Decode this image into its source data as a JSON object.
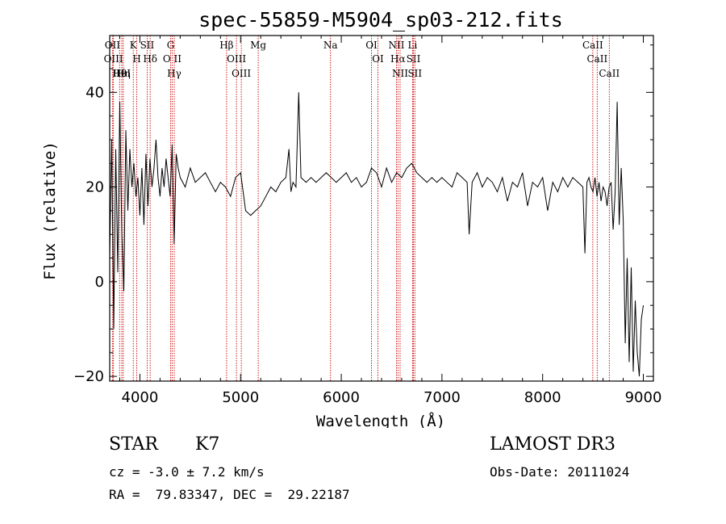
{
  "chart_data": {
    "type": "line",
    "title": "spec-55859-M5904_sp03-212.fits",
    "xlabel": "Wavelength (Å)",
    "ylabel": "Flux (relative)",
    "xlim": [
      3700,
      9100
    ],
    "ylim": [
      -21,
      52
    ],
    "xticks": [
      4000,
      5000,
      6000,
      7000,
      8000,
      9000
    ],
    "yticks": [
      -20,
      0,
      20,
      40
    ],
    "grid": false,
    "legend": "none",
    "series": [
      {
        "name": "spectrum",
        "color": "#000000",
        "x": [
          3700,
          3720,
          3740,
          3760,
          3780,
          3800,
          3820,
          3840,
          3860,
          3880,
          3900,
          3920,
          3940,
          3960,
          3980,
          4000,
          4020,
          4040,
          4060,
          4080,
          4100,
          4120,
          4140,
          4160,
          4180,
          4200,
          4220,
          4240,
          4260,
          4280,
          4300,
          4320,
          4340,
          4360,
          4380,
          4400,
          4450,
          4500,
          4550,
          4600,
          4650,
          4700,
          4750,
          4800,
          4850,
          4900,
          4950,
          5000,
          5050,
          5100,
          5150,
          5200,
          5250,
          5300,
          5350,
          5400,
          5450,
          5480,
          5500,
          5520,
          5550,
          5577,
          5600,
          5650,
          5700,
          5750,
          5800,
          5850,
          5900,
          5950,
          6000,
          6050,
          6100,
          6150,
          6200,
          6250,
          6300,
          6350,
          6400,
          6450,
          6500,
          6550,
          6600,
          6650,
          6700,
          6750,
          6800,
          6850,
          6900,
          6950,
          7000,
          7050,
          7100,
          7150,
          7200,
          7250,
          7270,
          7300,
          7350,
          7400,
          7450,
          7500,
          7550,
          7600,
          7650,
          7700,
          7750,
          7800,
          7850,
          7900,
          7950,
          8000,
          8050,
          8100,
          8150,
          8200,
          8250,
          8300,
          8350,
          8400,
          8420,
          8440,
          8460,
          8480,
          8500,
          8520,
          8540,
          8560,
          8580,
          8600,
          8620,
          8640,
          8660,
          8680,
          8700,
          8720,
          8740,
          8760,
          8780,
          8800,
          8820,
          8840,
          8860,
          8880,
          8900,
          8920,
          8940,
          8960,
          8980,
          9000
        ],
        "y": [
          5,
          30,
          -10,
          28,
          2,
          38,
          10,
          -2,
          32,
          15,
          28,
          20,
          25,
          18,
          22,
          14,
          24,
          12,
          27,
          16,
          26,
          20,
          24,
          30,
          22,
          18,
          24,
          20,
          26,
          22,
          18,
          29,
          8,
          27,
          24,
          22,
          20,
          24,
          21,
          22,
          23,
          21,
          19,
          21,
          20,
          18,
          22,
          23,
          15,
          14,
          15,
          16,
          18,
          20,
          19,
          21,
          22,
          28,
          19,
          21,
          20,
          40,
          22,
          21,
          22,
          21,
          22,
          23,
          22,
          21,
          22,
          23,
          21,
          22,
          20,
          21,
          24,
          23,
          20,
          24,
          21,
          23,
          22,
          24,
          25,
          23,
          22,
          21,
          22,
          21,
          22,
          21,
          20,
          23,
          22,
          21,
          10,
          21,
          23,
          20,
          22,
          21,
          19,
          22,
          17,
          21,
          20,
          23,
          16,
          21,
          20,
          22,
          15,
          21,
          19,
          22,
          20,
          22,
          21,
          20,
          6,
          21,
          22,
          20,
          19,
          22,
          18,
          21,
          17,
          20,
          19,
          16,
          20,
          21,
          11,
          19,
          38,
          12,
          24,
          13,
          -13,
          5,
          -17,
          3,
          -19,
          -4,
          -15,
          -20,
          -8,
          -5
        ]
      }
    ],
    "spectral_lines": [
      {
        "name": "Hθ",
        "wavelength": 3798
      },
      {
        "name": "OII",
        "wavelength": 3727
      },
      {
        "name": "OIII",
        "wavelength": 3737
      },
      {
        "name": "HeI",
        "wavelength": 3820
      },
      {
        "name": "Hη",
        "wavelength": 3835
      },
      {
        "name": "K",
        "wavelength": 3934
      },
      {
        "name": "SII",
        "wavelength": 4072
      },
      {
        "name": "H",
        "wavelength": 3969
      },
      {
        "name": "Hδ",
        "wavelength": 4102
      },
      {
        "name": "O II",
        "wavelength": 4320
      },
      {
        "name": "Hγ",
        "wavelength": 4341
      },
      {
        "name": "G",
        "wavelength": 4305
      },
      {
        "name": "Hβ",
        "wavelength": 4861
      },
      {
        "name": "OIII",
        "wavelength": 5007
      },
      {
        "name": "OIII",
        "wavelength": 4959
      },
      {
        "name": "Mg",
        "wavelength": 5175
      },
      {
        "name": "Na",
        "wavelength": 5893
      },
      {
        "name": "OI",
        "wavelength": 6300
      },
      {
        "name": "OI",
        "wavelength": 6364
      },
      {
        "name": "Hα",
        "wavelength": 6563
      },
      {
        "name": "NII",
        "wavelength": 6548
      },
      {
        "name": "NII",
        "wavelength": 6584
      },
      {
        "name": "SII",
        "wavelength": 6717
      },
      {
        "name": "Li",
        "wavelength": 6708
      },
      {
        "name": "SII",
        "wavelength": 6731
      },
      {
        "name": "CaII",
        "wavelength": 8542
      },
      {
        "name": "CaII",
        "wavelength": 8498
      },
      {
        "name": "CaII",
        "wavelength": 8662
      }
    ],
    "line_color": "#cc0000"
  },
  "info": {
    "object_class": "STAR",
    "subclass": "K7",
    "redshift": "cz = -3.0 ± 7.2 km/s",
    "coordinates": "RA =  79.83347, DEC =  29.22187",
    "survey": "LAMOST DR3",
    "obs_date": "Obs-Date: 20111024"
  }
}
